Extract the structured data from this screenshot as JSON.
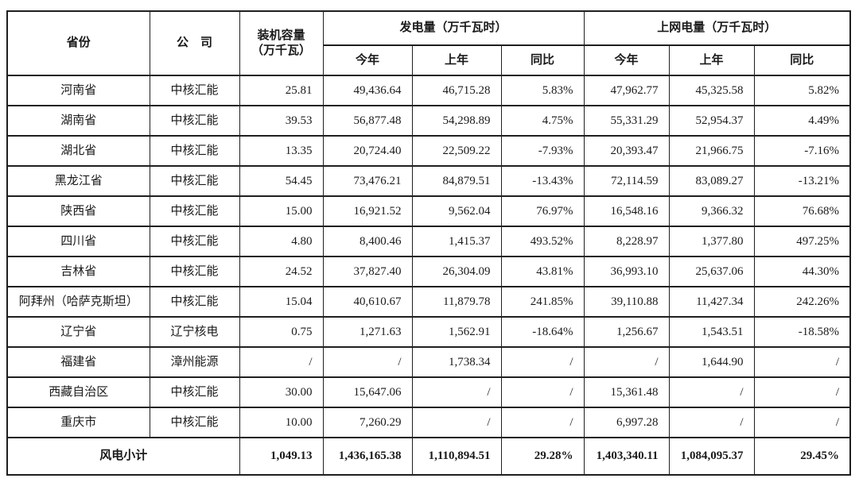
{
  "table": {
    "header": {
      "col_province": "省份",
      "col_company": "公　司",
      "col_capacity_line1": "装机容量",
      "col_capacity_line2": "（万千瓦）",
      "group_generation": "发电量（万千瓦时）",
      "group_ongrid": "上网电量（万千瓦时）",
      "gen_this_year": "今年",
      "gen_last_year": "上年",
      "gen_yoy": "同比",
      "grid_this_year": "今年",
      "grid_last_year": "上年",
      "grid_yoy": "同比"
    },
    "rows": [
      {
        "province": "河南省",
        "company": "中核汇能",
        "capacity": "25.81",
        "gen_this": "49,436.64",
        "gen_last": "46,715.28",
        "gen_yoy": "5.83%",
        "grid_this": "47,962.77",
        "grid_last": "45,325.58",
        "grid_yoy": "5.82%"
      },
      {
        "province": "湖南省",
        "company": "中核汇能",
        "capacity": "39.53",
        "gen_this": "56,877.48",
        "gen_last": "54,298.89",
        "gen_yoy": "4.75%",
        "grid_this": "55,331.29",
        "grid_last": "52,954.37",
        "grid_yoy": "4.49%"
      },
      {
        "province": "湖北省",
        "company": "中核汇能",
        "capacity": "13.35",
        "gen_this": "20,724.40",
        "gen_last": "22,509.22",
        "gen_yoy": "-7.93%",
        "grid_this": "20,393.47",
        "grid_last": "21,966.75",
        "grid_yoy": "-7.16%"
      },
      {
        "province": "黑龙江省",
        "company": "中核汇能",
        "capacity": "54.45",
        "gen_this": "73,476.21",
        "gen_last": "84,879.51",
        "gen_yoy": "-13.43%",
        "grid_this": "72,114.59",
        "grid_last": "83,089.27",
        "grid_yoy": "-13.21%"
      },
      {
        "province": "陕西省",
        "company": "中核汇能",
        "capacity": "15.00",
        "gen_this": "16,921.52",
        "gen_last": "9,562.04",
        "gen_yoy": "76.97%",
        "grid_this": "16,548.16",
        "grid_last": "9,366.32",
        "grid_yoy": "76.68%"
      },
      {
        "province": "四川省",
        "company": "中核汇能",
        "capacity": "4.80",
        "gen_this": "8,400.46",
        "gen_last": "1,415.37",
        "gen_yoy": "493.52%",
        "grid_this": "8,228.97",
        "grid_last": "1,377.80",
        "grid_yoy": "497.25%"
      },
      {
        "province": "吉林省",
        "company": "中核汇能",
        "capacity": "24.52",
        "gen_this": "37,827.40",
        "gen_last": "26,304.09",
        "gen_yoy": "43.81%",
        "grid_this": "36,993.10",
        "grid_last": "25,637.06",
        "grid_yoy": "44.30%"
      },
      {
        "province": "阿拜州（哈萨克斯坦）",
        "company": "中核汇能",
        "capacity": "15.04",
        "gen_this": "40,610.67",
        "gen_last": "11,879.78",
        "gen_yoy": "241.85%",
        "grid_this": "39,110.88",
        "grid_last": "11,427.34",
        "grid_yoy": "242.26%"
      },
      {
        "province": "辽宁省",
        "company": "辽宁核电",
        "capacity": "0.75",
        "gen_this": "1,271.63",
        "gen_last": "1,562.91",
        "gen_yoy": "-18.64%",
        "grid_this": "1,256.67",
        "grid_last": "1,543.51",
        "grid_yoy": "-18.58%"
      },
      {
        "province": "福建省",
        "company": "漳州能源",
        "capacity": "/",
        "gen_this": "/",
        "gen_last": "1,738.34",
        "gen_yoy": "/",
        "grid_this": "/",
        "grid_last": "1,644.90",
        "grid_yoy": "/"
      },
      {
        "province": "西藏自治区",
        "company": "中核汇能",
        "capacity": "30.00",
        "gen_this": "15,647.06",
        "gen_last": "/",
        "gen_yoy": "/",
        "grid_this": "15,361.48",
        "grid_last": "/",
        "grid_yoy": "/"
      },
      {
        "province": "重庆市",
        "company": "中核汇能",
        "capacity": "10.00",
        "gen_this": "7,260.29",
        "gen_last": "/",
        "gen_yoy": "/",
        "grid_this": "6,997.28",
        "grid_last": "/",
        "grid_yoy": "/"
      }
    ],
    "summary": {
      "label": "风电小计",
      "capacity": "1,049.13",
      "gen_this": "1,436,165.38",
      "gen_last": "1,110,894.51",
      "gen_yoy": "29.28%",
      "grid_this": "1,403,340.11",
      "grid_last": "1,084,095.37",
      "grid_yoy": "29.45%"
    }
  }
}
